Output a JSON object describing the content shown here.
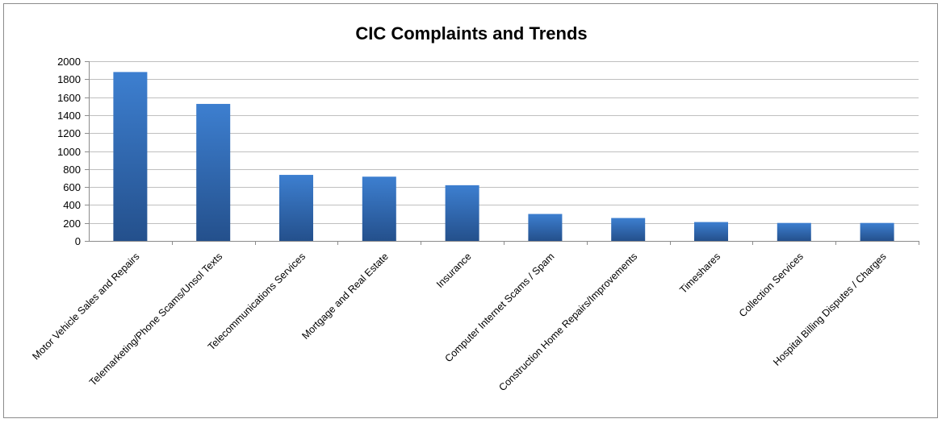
{
  "chart_data": {
    "type": "bar",
    "title": "CIC Complaints and Trends",
    "xlabel": "",
    "ylabel": "",
    "ylim": [
      0,
      2000
    ],
    "yticks": [
      0,
      200,
      400,
      600,
      800,
      1000,
      1200,
      1400,
      1600,
      1800,
      2000
    ],
    "grid": true,
    "legend": "none",
    "categories": [
      "Motor Vehicle Sales and Repairs",
      "Telemarketing/Phone Scams/Unsol Texts",
      "Telecommunications Services",
      "Mortgage and Real Estate",
      "Insurance",
      "Computer Internet Scams / Spam",
      "Construction Home Repairs/Improvements",
      "Timeshares",
      "Collection Services",
      "Hospital Billing Disputes / Charges"
    ],
    "values": [
      1880,
      1525,
      735,
      715,
      620,
      300,
      255,
      210,
      200,
      200
    ],
    "colors": {
      "bar_top": "#3d7fd0",
      "bar_bottom": "#24508c",
      "gridline": "#bfbfbf",
      "axis": "#8c8c8c"
    }
  }
}
